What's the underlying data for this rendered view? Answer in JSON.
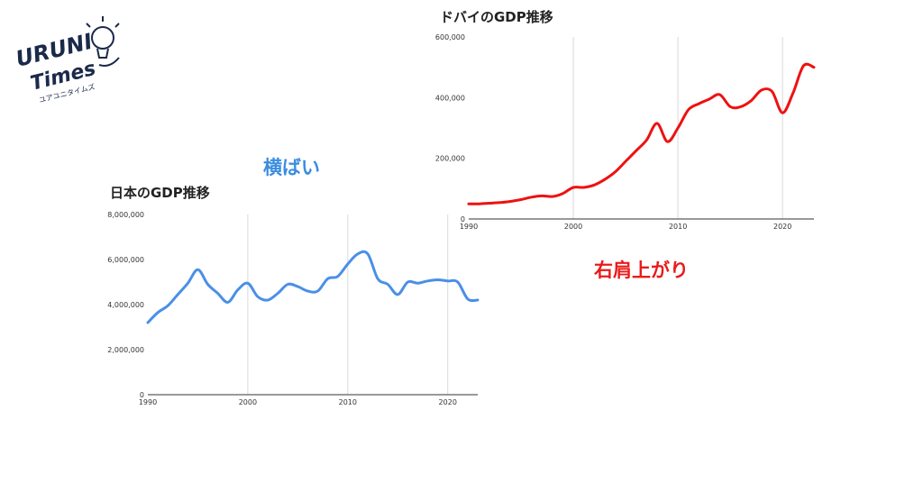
{
  "logo": {
    "line1": "URUNI",
    "line2": "Times",
    "tagline": "ユアユニタイムズ"
  },
  "annotations": {
    "japan": "横ばい",
    "dubai": "右肩上がり"
  },
  "colors": {
    "japan_line": "#4a8fe7",
    "dubai_line": "#ee1111",
    "annot_japan": "#3b8de0",
    "annot_dubai": "#ea1b1b"
  },
  "chart_data": [
    {
      "id": "japan",
      "type": "line",
      "title": "日本のGDP推移",
      "xlim": [
        1990,
        2023
      ],
      "ylim": [
        0,
        8000000
      ],
      "x_ticks": [
        "1990",
        "2000",
        "2010",
        "2020"
      ],
      "x_tick_values": [
        1990,
        2000,
        2010,
        2020
      ],
      "y_ticks": [
        "0",
        "2,000,000",
        "4,000,000",
        "6,000,000",
        "8,000,000"
      ],
      "y_tick_values": [
        0,
        2000000,
        4000000,
        6000000,
        8000000
      ],
      "grid": "vertical",
      "series": [
        {
          "x": [
            1990,
            1991,
            1992,
            1993,
            1994,
            1995,
            1996,
            1997,
            1998,
            1999,
            2000,
            2001,
            2002,
            2003,
            2004,
            2005,
            2006,
            2007,
            2008,
            2009,
            2010,
            2011,
            2012,
            2013,
            2014,
            2015,
            2016,
            2017,
            2018,
            2019,
            2020,
            2021,
            2022,
            2023
          ],
          "values": [
            3200000,
            3650000,
            3950000,
            4450000,
            4950000,
            5550000,
            4900000,
            4500000,
            4100000,
            4650000,
            4950000,
            4350000,
            4200000,
            4500000,
            4900000,
            4800000,
            4600000,
            4600000,
            5150000,
            5250000,
            5800000,
            6250000,
            6250000,
            5150000,
            4900000,
            4450000,
            5000000,
            4950000,
            5050000,
            5100000,
            5050000,
            5000000,
            4250000,
            4200000
          ]
        }
      ]
    },
    {
      "id": "dubai",
      "type": "line",
      "title": "ドバイのGDP推移",
      "xlim": [
        1990,
        2023
      ],
      "ylim": [
        0,
        600000
      ],
      "x_ticks": [
        "1990",
        "2000",
        "2010",
        "2020"
      ],
      "x_tick_values": [
        1990,
        2000,
        2010,
        2020
      ],
      "y_ticks": [
        "0",
        "200,000",
        "400,000",
        "600,000"
      ],
      "y_tick_values": [
        0,
        200000,
        400000,
        600000
      ],
      "grid": "vertical",
      "series": [
        {
          "x": [
            1990,
            1991,
            1992,
            1993,
            1994,
            1995,
            1996,
            1997,
            1998,
            1999,
            2000,
            2001,
            2002,
            2003,
            2004,
            2005,
            2006,
            2007,
            2008,
            2009,
            2010,
            2011,
            2012,
            2013,
            2014,
            2015,
            2016,
            2017,
            2018,
            2019,
            2020,
            2021,
            2022,
            2023
          ],
          "values": [
            50000,
            50000,
            52000,
            54000,
            58000,
            64000,
            72000,
            76000,
            74000,
            84000,
            104000,
            104000,
            112000,
            130000,
            155000,
            190000,
            225000,
            260000,
            315000,
            255000,
            300000,
            360000,
            380000,
            395000,
            410000,
            370000,
            370000,
            390000,
            425000,
            420000,
            350000,
            415000,
            505000,
            500000
          ]
        }
      ]
    }
  ]
}
